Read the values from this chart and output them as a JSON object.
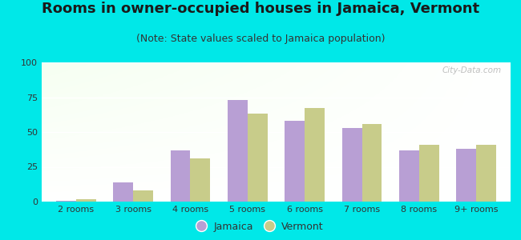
{
  "title": "Rooms in owner-occupied houses in Jamaica, Vermont",
  "subtitle": "(Note: State values scaled to Jamaica population)",
  "categories": [
    "2 rooms",
    "3 rooms",
    "4 rooms",
    "5 rooms",
    "6 rooms",
    "7 rooms",
    "8 rooms",
    "9+ rooms"
  ],
  "jamaica": [
    0.5,
    14,
    37,
    73,
    58,
    53,
    37,
    38
  ],
  "vermont": [
    2,
    8,
    31,
    63,
    67,
    56,
    41,
    41
  ],
  "jamaica_color": "#b89fd4",
  "vermont_color": "#c8cc8a",
  "background_outer": "#00e8e8",
  "ylim": [
    0,
    100
  ],
  "yticks": [
    0,
    25,
    50,
    75,
    100
  ],
  "bar_width": 0.35,
  "title_fontsize": 13,
  "subtitle_fontsize": 9,
  "tick_fontsize": 8,
  "legend_fontsize": 9,
  "watermark": "City-Data.com"
}
